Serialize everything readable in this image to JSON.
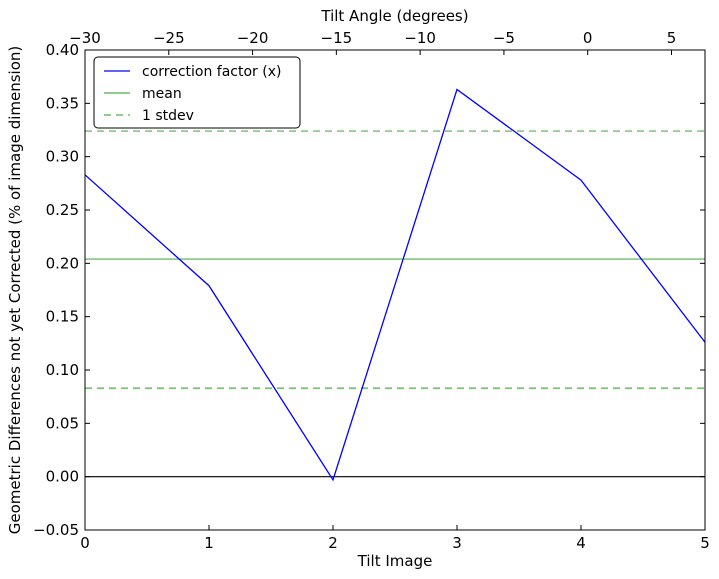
{
  "chart_data": {
    "type": "line",
    "xlabel": "Tilt Image",
    "ylabel": "Geometric Differences not yet Corrected (% of image dimension)",
    "top_xlabel": "Tilt Angle (degrees)",
    "xlim": [
      0,
      5
    ],
    "ylim": [
      -0.05,
      0.4
    ],
    "top_xlim": [
      -30,
      7
    ],
    "x_ticks": [
      0,
      1,
      2,
      3,
      4,
      5
    ],
    "x_tick_labels": [
      "0",
      "1",
      "2",
      "3",
      "4",
      "5"
    ],
    "y_ticks": [
      -0.05,
      0.0,
      0.05,
      0.1,
      0.15,
      0.2,
      0.25,
      0.3,
      0.35,
      0.4
    ],
    "y_tick_labels": [
      "−0.05",
      "0.00",
      "0.05",
      "0.10",
      "0.15",
      "0.20",
      "0.25",
      "0.30",
      "0.35",
      "0.40"
    ],
    "top_ticks": [
      -30,
      -25,
      -20,
      -15,
      -10,
      -5,
      0,
      5
    ],
    "top_tick_labels": [
      "−30",
      "−25",
      "−20",
      "−15",
      "−10",
      "−5",
      "0",
      "5"
    ],
    "series": [
      {
        "name": "correction factor (x)",
        "x": [
          0,
          1,
          2,
          3,
          4,
          5
        ],
        "y": [
          0.283,
          0.179,
          -0.003,
          0.363,
          0.278,
          0.126
        ],
        "color": "#0000ff",
        "style": "solid"
      }
    ],
    "hlines": [
      {
        "name": "mean",
        "y": 0.204,
        "color": "#4daf4a",
        "style": "solid"
      },
      {
        "name": "1 stdev",
        "y": 0.324,
        "color": "#4daf4a",
        "style": "dashed"
      },
      {
        "name": "",
        "y": 0.083,
        "color": "#4daf4a",
        "style": "dashed"
      },
      {
        "name": "",
        "y": 0.0,
        "color": "#000000",
        "style": "solid"
      }
    ],
    "legend": {
      "placement": "top-left",
      "entries": [
        {
          "label": "correction factor (x)",
          "color": "#0000ff",
          "style": "solid"
        },
        {
          "label": "mean",
          "color": "#4daf4a",
          "style": "solid"
        },
        {
          "label": "1 stdev",
          "color": "#4daf4a",
          "style": "dashed"
        }
      ]
    },
    "grid": false
  }
}
